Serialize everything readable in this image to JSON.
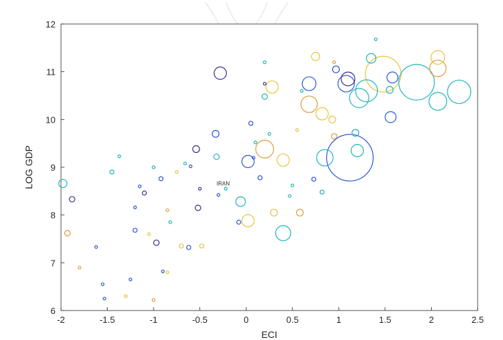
{
  "chart_data": {
    "type": "scatter",
    "xlabel": "ECI",
    "ylabel": "LOG GDP",
    "xlim": [
      -2,
      2.5
    ],
    "ylim": [
      6,
      12
    ],
    "xticks": [
      "-2",
      "-1.5",
      "-1",
      "-0.5",
      "0",
      "0.5",
      "1",
      "1.5",
      "2",
      "2.5"
    ],
    "yticks": [
      "6",
      "7",
      "8",
      "9",
      "10",
      "11",
      "12"
    ],
    "grid": false,
    "annotations": [
      {
        "text": "IRAN",
        "x": -0.32,
        "y": 8.66
      }
    ],
    "colors": [
      "#2a55d4",
      "#1fb5b8",
      "#e6c43a",
      "#3a2d8c",
      "#e09a3c",
      "#22b0c8"
    ],
    "points": [
      {
        "x": 1.12,
        "y": 9.2,
        "size": 34,
        "color": 0
      },
      {
        "x": 1.48,
        "y": 10.95,
        "size": 26,
        "color": 2
      },
      {
        "x": 1.84,
        "y": 10.78,
        "size": 26,
        "color": 1
      },
      {
        "x": 2.3,
        "y": 10.58,
        "size": 17,
        "color": 1
      },
      {
        "x": 2.07,
        "y": 10.38,
        "size": 13,
        "color": 1
      },
      {
        "x": 2.07,
        "y": 11.07,
        "size": 12,
        "color": 4
      },
      {
        "x": 2.07,
        "y": 11.3,
        "size": 10,
        "color": 2
      },
      {
        "x": 1.22,
        "y": 10.45,
        "size": 14,
        "color": 1
      },
      {
        "x": 1.3,
        "y": 10.6,
        "size": 16,
        "color": 1
      },
      {
        "x": 1.08,
        "y": 10.75,
        "size": 12,
        "color": 0
      },
      {
        "x": 1.1,
        "y": 10.85,
        "size": 10,
        "color": 3
      },
      {
        "x": 1.35,
        "y": 11.28,
        "size": 7,
        "color": 1
      },
      {
        "x": 1.58,
        "y": 10.88,
        "size": 8,
        "color": 0
      },
      {
        "x": 1.56,
        "y": 10.05,
        "size": 8,
        "color": 0
      },
      {
        "x": 0.68,
        "y": 10.75,
        "size": 10,
        "color": 0
      },
      {
        "x": 0.68,
        "y": 10.32,
        "size": 12,
        "color": 4
      },
      {
        "x": 0.82,
        "y": 10.12,
        "size": 9,
        "color": 2
      },
      {
        "x": 0.85,
        "y": 9.2,
        "size": 12,
        "color": 5
      },
      {
        "x": 1.2,
        "y": 9.35,
        "size": 9,
        "color": 1
      },
      {
        "x": 0.2,
        "y": 9.38,
        "size": 13,
        "color": 4
      },
      {
        "x": 0.4,
        "y": 9.15,
        "size": 9,
        "color": 2
      },
      {
        "x": 0.4,
        "y": 7.62,
        "size": 11,
        "color": 1
      },
      {
        "x": 0.02,
        "y": 7.88,
        "size": 9,
        "color": 2
      },
      {
        "x": 0.02,
        "y": 9.12,
        "size": 9,
        "color": 0
      },
      {
        "x": -0.28,
        "y": 10.97,
        "size": 9,
        "color": 3
      },
      {
        "x": -0.06,
        "y": 8.28,
        "size": 7,
        "color": 1
      },
      {
        "x": -1.98,
        "y": 8.66,
        "size": 6,
        "color": 1
      },
      {
        "x": -0.54,
        "y": 9.38,
        "size": 5,
        "color": 3
      },
      {
        "x": 0.28,
        "y": 10.68,
        "size": 9,
        "color": 2
      },
      {
        "x": 0.75,
        "y": 11.32,
        "size": 6,
        "color": 2
      },
      {
        "x": 0.97,
        "y": 11.05,
        "size": 5,
        "color": 0
      },
      {
        "x": 0.58,
        "y": 8.05,
        "size": 5,
        "color": 4
      },
      {
        "x": 0.3,
        "y": 8.05,
        "size": 5,
        "color": 2
      },
      {
        "x": 0.2,
        "y": 10.48,
        "size": 4,
        "color": 1
      },
      {
        "x": 0.93,
        "y": 10.0,
        "size": 5,
        "color": 2
      },
      {
        "x": 0.95,
        "y": 9.65,
        "size": 4,
        "color": 4
      },
      {
        "x": 1.18,
        "y": 9.72,
        "size": 5,
        "color": 5
      },
      {
        "x": 1.55,
        "y": 10.62,
        "size": 5,
        "color": 1
      },
      {
        "x": -0.33,
        "y": 9.7,
        "size": 5,
        "color": 0
      },
      {
        "x": -0.32,
        "y": 9.22,
        "size": 4,
        "color": 1
      },
      {
        "x": -1.88,
        "y": 8.33,
        "size": 4,
        "color": 3
      },
      {
        "x": -1.93,
        "y": 7.62,
        "size": 4,
        "color": 4
      },
      {
        "x": -0.97,
        "y": 7.42,
        "size": 4,
        "color": 3
      },
      {
        "x": -0.52,
        "y": 8.15,
        "size": 4,
        "color": 3
      },
      {
        "x": -0.08,
        "y": 7.85,
        "size": 3,
        "color": 0
      },
      {
        "x": 0.05,
        "y": 9.92,
        "size": 3,
        "color": 0
      },
      {
        "x": 0.15,
        "y": 8.78,
        "size": 3,
        "color": 0
      },
      {
        "x": 0.82,
        "y": 8.48,
        "size": 3,
        "color": 1
      },
      {
        "x": 0.73,
        "y": 8.75,
        "size": 3,
        "color": 0
      },
      {
        "x": -1.2,
        "y": 7.68,
        "size": 3,
        "color": 0
      },
      {
        "x": -1.15,
        "y": 8.6,
        "size": 2,
        "color": 0
      },
      {
        "x": -1.45,
        "y": 8.9,
        "size": 3,
        "color": 1
      },
      {
        "x": -1.1,
        "y": 8.46,
        "size": 3,
        "color": 3
      },
      {
        "x": -0.92,
        "y": 8.76,
        "size": 3,
        "color": 0
      },
      {
        "x": -0.85,
        "y": 8.1,
        "size": 2,
        "color": 4
      },
      {
        "x": -0.7,
        "y": 7.35,
        "size": 3,
        "color": 2
      },
      {
        "x": -0.62,
        "y": 7.32,
        "size": 3,
        "color": 0
      },
      {
        "x": -0.48,
        "y": 7.35,
        "size": 3,
        "color": 2
      },
      {
        "x": -0.6,
        "y": 9.02,
        "size": 2,
        "color": 0
      },
      {
        "x": -0.66,
        "y": 9.08,
        "size": 2,
        "color": 1
      },
      {
        "x": -1.37,
        "y": 9.23,
        "size": 2,
        "color": 1
      },
      {
        "x": -1.0,
        "y": 9.0,
        "size": 2,
        "color": 1
      },
      {
        "x": -1.62,
        "y": 7.33,
        "size": 2,
        "color": 0
      },
      {
        "x": -1.53,
        "y": 6.25,
        "size": 2,
        "color": 0
      },
      {
        "x": -1.3,
        "y": 6.3,
        "size": 2,
        "color": 2
      },
      {
        "x": -1.0,
        "y": 6.22,
        "size": 2,
        "color": 4
      },
      {
        "x": -0.85,
        "y": 6.8,
        "size": 2,
        "color": 2
      },
      {
        "x": -0.9,
        "y": 6.82,
        "size": 2,
        "color": 0
      },
      {
        "x": -1.8,
        "y": 6.9,
        "size": 2,
        "color": 4
      },
      {
        "x": -1.2,
        "y": 8.16,
        "size": 2,
        "color": 0
      },
      {
        "x": -0.3,
        "y": 8.42,
        "size": 2,
        "color": 0
      },
      {
        "x": -0.22,
        "y": 8.55,
        "size": 2,
        "color": 1
      },
      {
        "x": -0.5,
        "y": 8.55,
        "size": 2,
        "color": 3
      },
      {
        "x": 0.47,
        "y": 8.4,
        "size": 2,
        "color": 1
      },
      {
        "x": 0.5,
        "y": 8.62,
        "size": 2,
        "color": 1
      },
      {
        "x": 0.1,
        "y": 9.52,
        "size": 2,
        "color": 1
      },
      {
        "x": 0.25,
        "y": 9.7,
        "size": 2,
        "color": 1
      },
      {
        "x": 0.55,
        "y": 9.78,
        "size": 2,
        "color": 2
      },
      {
        "x": 0.6,
        "y": 10.6,
        "size": 2,
        "color": 1
      },
      {
        "x": 0.95,
        "y": 11.2,
        "size": 2,
        "color": 4
      },
      {
        "x": 1.4,
        "y": 11.68,
        "size": 2,
        "color": 1
      },
      {
        "x": 0.2,
        "y": 11.2,
        "size": 2,
        "color": 1
      },
      {
        "x": 0.2,
        "y": 10.75,
        "size": 2,
        "color": 3
      },
      {
        "x": 0.08,
        "y": 9.2,
        "size": 2,
        "color": 0
      },
      {
        "x": -0.75,
        "y": 8.9,
        "size": 2,
        "color": 2
      },
      {
        "x": -0.82,
        "y": 7.85,
        "size": 2,
        "color": 1
      },
      {
        "x": -1.05,
        "y": 7.6,
        "size": 2,
        "color": 2
      },
      {
        "x": -1.55,
        "y": 6.55,
        "size": 2,
        "color": 0
      },
      {
        "x": -1.25,
        "y": 6.65,
        "size": 2,
        "color": 0
      }
    ]
  }
}
